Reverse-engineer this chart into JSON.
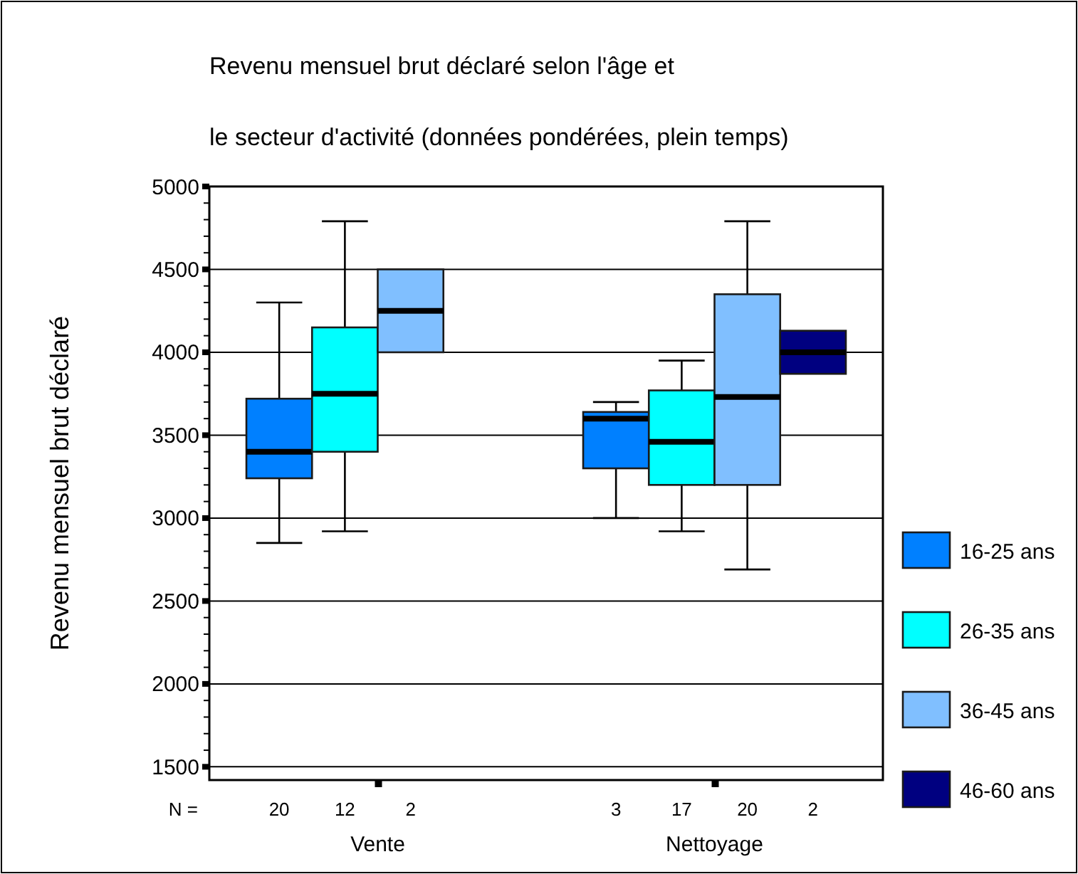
{
  "chart_data": {
    "type": "box",
    "title": "Revenu mensuel brut déclaré selon l'âge et le secteur d'activité (données pondérées, plein temps)",
    "ylabel": "Revenu mensuel brut déclaré",
    "categories": [
      "Vente",
      "Nettoyage"
    ],
    "series": [
      {
        "name": "16-25 ans",
        "color": "#0080ff",
        "boxes": [
          {
            "low": 2850,
            "q1": 3240,
            "median": 3400,
            "q3": 3720,
            "high": 4300
          },
          {
            "low": 3000,
            "q1": 3300,
            "median": 3600,
            "q3": 3640,
            "high": 3700
          }
        ]
      },
      {
        "name": "26-35 ans",
        "color": "#00ffff",
        "boxes": [
          {
            "low": 2920,
            "q1": 3400,
            "median": 3750,
            "q3": 4150,
            "high": 4790
          },
          {
            "low": 2920,
            "q1": 3200,
            "median": 3460,
            "q3": 3770,
            "high": 3950
          }
        ]
      },
      {
        "name": "36-45 ans",
        "color": "#80bfff",
        "boxes": [
          {
            "low": 4000,
            "q1": 4000,
            "median": 4250,
            "q3": 4500,
            "high": 4500
          },
          {
            "low": 2690,
            "q1": 3200,
            "median": 3730,
            "q3": 4350,
            "high": 4790
          }
        ]
      },
      {
        "name": "46-60 ans",
        "color": "#000080",
        "boxes": [
          null,
          {
            "low": 3870,
            "q1": 3870,
            "median": 4000,
            "q3": 4130,
            "high": 4130
          }
        ]
      }
    ],
    "ylim": [
      1420,
      5000
    ],
    "yticks": [
      1500,
      {
        "value": 1600,
        "label": null
      },
      {
        "value": 1700,
        "label": null
      },
      {
        "value": 1800,
        "label": null
      },
      {
        "value": 1900,
        "label": null
      },
      2000,
      {
        "value": 2100,
        "label": null
      },
      {
        "value": 2200,
        "label": null
      },
      {
        "value": 2300,
        "label": null
      },
      {
        "value": 2400,
        "label": null
      },
      2500,
      {
        "value": 2600,
        "label": null
      },
      {
        "value": 2700,
        "label": null
      },
      {
        "value": 2800,
        "label": null
      },
      {
        "value": 2900,
        "label": null
      },
      3000,
      {
        "value": 3100,
        "label": null
      },
      {
        "value": 3200,
        "label": null
      },
      {
        "value": 3300,
        "label": null
      },
      {
        "value": 3400,
        "label": null
      },
      3500,
      {
        "value": 3600,
        "label": null
      },
      {
        "value": 3700,
        "label": null
      },
      {
        "value": 3800,
        "label": null
      },
      {
        "value": 3900,
        "label": null
      },
      4000,
      {
        "value": 4100,
        "label": null
      },
      {
        "value": 4200,
        "label": null
      },
      {
        "value": 4300,
        "label": null
      },
      {
        "value": 4400,
        "label": null
      },
      4500,
      {
        "value": 4600,
        "label": null
      },
      {
        "value": 4700,
        "label": null
      },
      {
        "value": 4800,
        "label": null
      },
      {
        "value": 4900,
        "label": null
      },
      5000
    ],
    "grid": "y",
    "legend": "right",
    "annotations": [
      "N =",
      "20",
      "12",
      "2",
      "3",
      "17",
      "20",
      "2"
    ]
  }
}
